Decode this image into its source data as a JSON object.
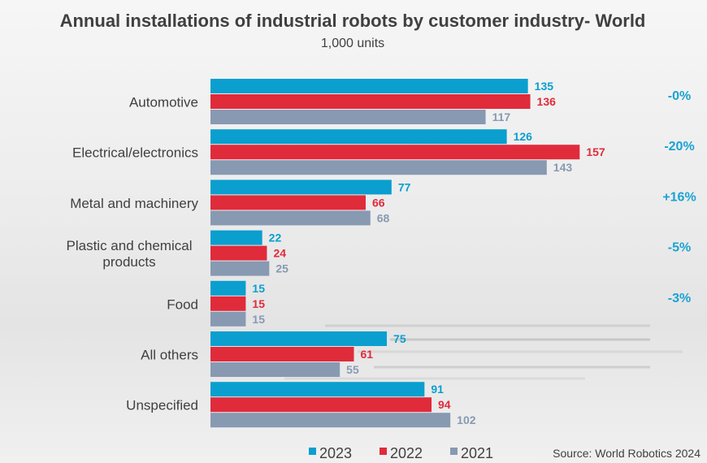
{
  "chart_data": {
    "type": "bar",
    "orientation": "horizontal",
    "title": "Annual installations of industrial robots by customer industry- World",
    "subtitle": "1,000 units",
    "categories": [
      [
        "Automotive"
      ],
      [
        "Electrical/electronics"
      ],
      [
        "Metal and machinery"
      ],
      [
        "Plastic and chemical",
        "products"
      ],
      [
        "Food"
      ],
      [
        "All others"
      ],
      [
        "Unspecified"
      ]
    ],
    "series": [
      {
        "name": "2023",
        "color": "#0a9fcf",
        "values": [
          135,
          126,
          77,
          22,
          15,
          75,
          91
        ]
      },
      {
        "name": "2022",
        "color": "#e02b3b",
        "values": [
          136,
          157,
          66,
          24,
          15,
          61,
          94
        ]
      },
      {
        "name": "2021",
        "color": "#8899b2",
        "values": [
          117,
          143,
          68,
          25,
          15,
          55,
          102
        ]
      }
    ],
    "changes": [
      "-0%",
      "-20%",
      "+16%",
      "-5%",
      "-3%",
      "",
      ""
    ],
    "change_color": "#1aa3d3",
    "xlim": [
      0,
      160
    ],
    "source": "Source: World Robotics 2024"
  }
}
